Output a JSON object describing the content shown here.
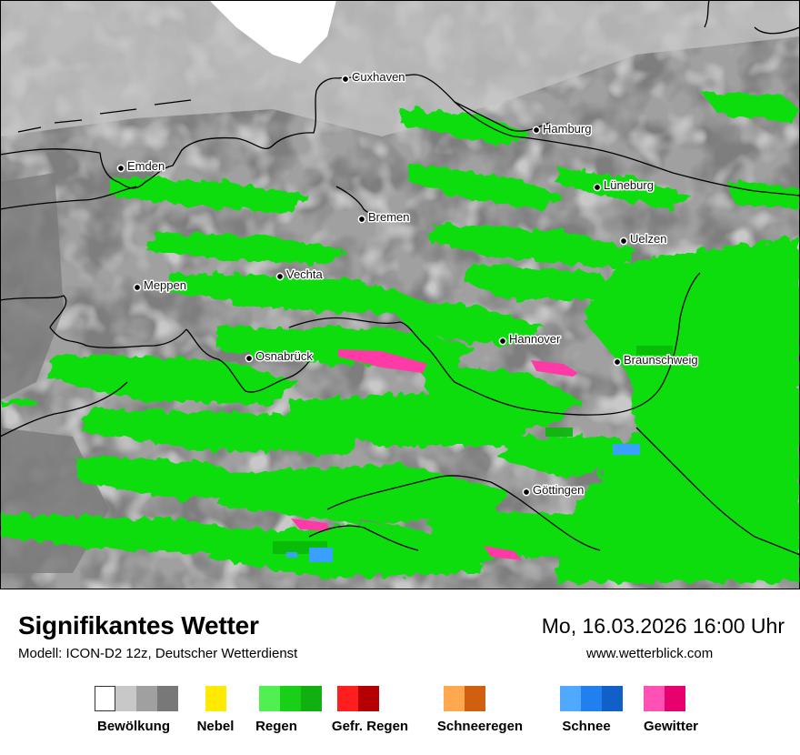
{
  "title": "Signifikantes Wetter",
  "model": "Modell: ICON-D2 12z, Deutscher Wetterdienst",
  "datetime": "Mo, 16.03.2026 16:00 Uhr",
  "website": "www.wetterblick.com",
  "cities": [
    {
      "name": "Cuxhaven"
    },
    {
      "name": "Hamburg"
    },
    {
      "name": "Emden"
    },
    {
      "name": "Lüneburg"
    },
    {
      "name": "Bremen"
    },
    {
      "name": "Uelzen"
    },
    {
      "name": "Vechta"
    },
    {
      "name": "Meppen"
    },
    {
      "name": "Hannover"
    },
    {
      "name": "Osnabrück"
    },
    {
      "name": "Braunschweig"
    },
    {
      "name": "Göttingen"
    }
  ],
  "legend": [
    {
      "label": "Bewölkung",
      "colors": [
        "#ffffff",
        "#c8c8c8",
        "#a0a0a0",
        "#787878"
      ]
    },
    {
      "label": "Nebel",
      "colors": [
        "#ffeb00"
      ]
    },
    {
      "label": "Regen",
      "colors": [
        "#50f050",
        "#18d018",
        "#10b010"
      ]
    },
    {
      "label": "Gefr. Regen",
      "colors": [
        "#ff1e1e",
        "#b40000"
      ]
    },
    {
      "label": "Schneeregen",
      "colors": [
        "#ffa850",
        "#d06010"
      ]
    },
    {
      "label": "Schnee",
      "colors": [
        "#50a8ff",
        "#2080f0",
        "#1060c8"
      ]
    },
    {
      "label": "Gewitter",
      "colors": [
        "#ff50b4",
        "#e8006e"
      ]
    }
  ]
}
